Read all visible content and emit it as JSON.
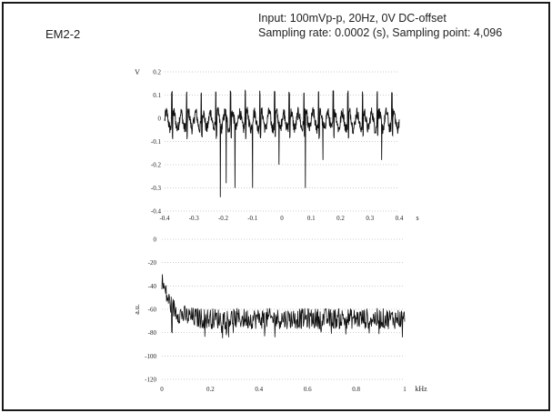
{
  "header": {
    "panel_label": "EM2-2",
    "line1": "Input: 100mVp-p, 20Hz, 0V DC-offset",
    "line2": "Sampling rate: 0.0002 (s), Sampling point: 4,096"
  },
  "chart_data": [
    {
      "type": "line",
      "title": "",
      "xlabel": "s",
      "ylabel": "V",
      "xlim": [
        -0.4,
        0.4
      ],
      "ylim": [
        -0.4,
        0.2
      ],
      "x_ticks": [
        "-0.4",
        "-0.3",
        "-0.2",
        "-0.1",
        "0",
        "0.1",
        "0.2",
        "0.3",
        "0.4"
      ],
      "y_ticks": [
        "0.2",
        "0.1",
        "0",
        "-0.1",
        "-0.2",
        "-0.3",
        "-0.4"
      ],
      "grid": true,
      "signal": {
        "description": "periodic spike train",
        "period_s": 0.05,
        "positive_spike_peak": 0.12,
        "baseline_range": [
          -0.06,
          0.04
        ],
        "negative_spikes": [
          {
            "x": -0.21,
            "y": -0.34
          },
          {
            "x": -0.19,
            "y": -0.28
          },
          {
            "x": -0.16,
            "y": -0.3
          },
          {
            "x": -0.1,
            "y": -0.3
          },
          {
            "x": -0.01,
            "y": -0.2
          },
          {
            "x": 0.08,
            "y": -0.3
          },
          {
            "x": 0.14,
            "y": -0.18
          },
          {
            "x": 0.34,
            "y": -0.18
          }
        ]
      }
    },
    {
      "type": "line",
      "title": "",
      "xlabel": "kHz",
      "ylabel": "a.u.",
      "xlim": [
        0,
        1
      ],
      "ylim": [
        -120,
        0
      ],
      "x_ticks": [
        "0",
        "0.2",
        "0.4",
        "0.6",
        "0.8",
        "1"
      ],
      "y_ticks": [
        "0",
        "-20",
        "-40",
        "-60",
        "-80",
        "-100",
        "-120"
      ],
      "grid": true,
      "signal": {
        "description": "noisy spectrum",
        "start_level": -34,
        "floor_level": -68,
        "noise_range": [
          -85,
          -56
        ]
      }
    }
  ]
}
